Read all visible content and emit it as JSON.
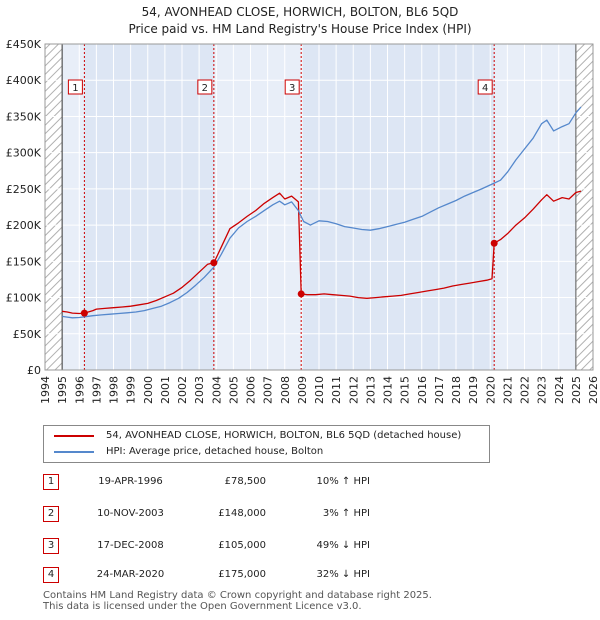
{
  "title": {
    "line1": "54, AVONHEAD CLOSE, HORWICH, BOLTON, BL6 5QD",
    "line2": "Price paid vs. HM Land Registry's House Price Index (HPI)"
  },
  "colors": {
    "property": "#cc0000",
    "hpi": "#5588cc",
    "sale_band": "#dde6f4",
    "future_hatch": "#b0b0b0",
    "grid": "#ffffff",
    "plot_bg": "#e8eef8"
  },
  "chart_data": {
    "type": "line",
    "title": "54, AVONHEAD CLOSE, HORWICH, BOLTON, BL6 5QD — Price paid vs. HM Land Registry's House Price Index (HPI)",
    "xlabel": "",
    "ylabel": "",
    "xlim": [
      1995,
      2026
    ],
    "ylim": [
      0,
      450000
    ],
    "x_ticks": [
      1994,
      1995,
      1996,
      1997,
      1998,
      1999,
      2000,
      2001,
      2002,
      2003,
      2004,
      2005,
      2006,
      2007,
      2008,
      2009,
      2010,
      2011,
      2012,
      2013,
      2014,
      2015,
      2016,
      2017,
      2018,
      2019,
      2020,
      2021,
      2022,
      2023,
      2024,
      2025,
      2026
    ],
    "y_ticks": [
      {
        "value": 0,
        "label": "£0"
      },
      {
        "value": 50000,
        "label": "£50K"
      },
      {
        "value": 100000,
        "label": "£100K"
      },
      {
        "value": 150000,
        "label": "£150K"
      },
      {
        "value": 200000,
        "label": "£200K"
      },
      {
        "value": 250000,
        "label": "£250K"
      },
      {
        "value": 300000,
        "label": "£300K"
      },
      {
        "value": 350000,
        "label": "£350K"
      },
      {
        "value": 400000,
        "label": "£400K"
      },
      {
        "value": 450000,
        "label": "£450K"
      }
    ],
    "future_from": 2025.0,
    "series": [
      {
        "name": "54, AVONHEAD CLOSE, HORWICH, BOLTON, BL6 5QD (detached house)",
        "color": "#cc0000",
        "points": [
          [
            1995.0,
            81000
          ],
          [
            1995.3,
            80000
          ],
          [
            1995.6,
            78500
          ],
          [
            1996.0,
            78000
          ],
          [
            1996.3,
            78500
          ],
          [
            1996.8,
            82000
          ],
          [
            1997.0,
            84000
          ],
          [
            1997.5,
            85000
          ],
          [
            1998.0,
            86000
          ],
          [
            1998.5,
            87000
          ],
          [
            1999.0,
            88000
          ],
          [
            1999.5,
            90000
          ],
          [
            2000.0,
            92000
          ],
          [
            2000.5,
            96000
          ],
          [
            2001.0,
            101000
          ],
          [
            2001.5,
            106000
          ],
          [
            2002.0,
            114000
          ],
          [
            2002.5,
            124000
          ],
          [
            2003.0,
            135000
          ],
          [
            2003.5,
            146000
          ],
          [
            2003.86,
            148000
          ],
          [
            2004.3,
            170000
          ],
          [
            2004.8,
            195000
          ],
          [
            2005.3,
            203000
          ],
          [
            2005.8,
            212000
          ],
          [
            2006.3,
            220000
          ],
          [
            2006.8,
            230000
          ],
          [
            2007.3,
            238000
          ],
          [
            2007.7,
            244000
          ],
          [
            2008.0,
            236000
          ],
          [
            2008.4,
            240000
          ],
          [
            2008.8,
            232000
          ],
          [
            2008.96,
            105000
          ],
          [
            2009.3,
            104000
          ],
          [
            2009.8,
            104000
          ],
          [
            2010.3,
            105000
          ],
          [
            2010.8,
            104000
          ],
          [
            2011.3,
            103000
          ],
          [
            2011.8,
            102000
          ],
          [
            2012.3,
            100000
          ],
          [
            2012.8,
            99000
          ],
          [
            2013.3,
            100000
          ],
          [
            2013.8,
            101000
          ],
          [
            2014.3,
            102000
          ],
          [
            2014.8,
            103000
          ],
          [
            2015.3,
            105000
          ],
          [
            2015.8,
            107000
          ],
          [
            2016.3,
            109000
          ],
          [
            2016.8,
            111000
          ],
          [
            2017.3,
            113000
          ],
          [
            2017.8,
            116000
          ],
          [
            2018.3,
            118000
          ],
          [
            2018.8,
            120000
          ],
          [
            2019.3,
            122000
          ],
          [
            2019.8,
            124000
          ],
          [
            2020.1,
            126000
          ],
          [
            2020.23,
            175000
          ],
          [
            2020.6,
            180000
          ],
          [
            2021.0,
            188000
          ],
          [
            2021.5,
            200000
          ],
          [
            2022.0,
            210000
          ],
          [
            2022.5,
            222000
          ],
          [
            2023.0,
            235000
          ],
          [
            2023.3,
            242000
          ],
          [
            2023.7,
            233000
          ],
          [
            2024.2,
            238000
          ],
          [
            2024.6,
            236000
          ],
          [
            2025.0,
            245000
          ],
          [
            2025.3,
            247000
          ]
        ]
      },
      {
        "name": "HPI: Average price, detached house, Bolton",
        "color": "#5588cc",
        "points": [
          [
            1995.0,
            74000
          ],
          [
            1995.3,
            73000
          ],
          [
            1995.6,
            72000
          ],
          [
            1996.0,
            72500
          ],
          [
            1996.3,
            73500
          ],
          [
            1996.8,
            75000
          ],
          [
            1997.3,
            76000
          ],
          [
            1997.8,
            77000
          ],
          [
            1998.3,
            78000
          ],
          [
            1998.8,
            79000
          ],
          [
            1999.3,
            80000
          ],
          [
            1999.8,
            82000
          ],
          [
            2000.3,
            85000
          ],
          [
            2000.8,
            88000
          ],
          [
            2001.3,
            93000
          ],
          [
            2001.8,
            99000
          ],
          [
            2002.3,
            107000
          ],
          [
            2002.8,
            117000
          ],
          [
            2003.3,
            128000
          ],
          [
            2003.86,
            142000
          ],
          [
            2004.3,
            160000
          ],
          [
            2004.8,
            182000
          ],
          [
            2005.3,
            196000
          ],
          [
            2005.8,
            205000
          ],
          [
            2006.3,
            212000
          ],
          [
            2006.8,
            220000
          ],
          [
            2007.3,
            228000
          ],
          [
            2007.7,
            233000
          ],
          [
            2008.0,
            228000
          ],
          [
            2008.4,
            232000
          ],
          [
            2008.8,
            220000
          ],
          [
            2009.1,
            205000
          ],
          [
            2009.5,
            200000
          ],
          [
            2010.0,
            206000
          ],
          [
            2010.5,
            205000
          ],
          [
            2011.0,
            202000
          ],
          [
            2011.5,
            198000
          ],
          [
            2012.0,
            196000
          ],
          [
            2012.5,
            194000
          ],
          [
            2013.0,
            193000
          ],
          [
            2013.5,
            195000
          ],
          [
            2014.0,
            198000
          ],
          [
            2014.5,
            201000
          ],
          [
            2015.0,
            204000
          ],
          [
            2015.5,
            208000
          ],
          [
            2016.0,
            212000
          ],
          [
            2016.5,
            218000
          ],
          [
            2017.0,
            224000
          ],
          [
            2017.5,
            229000
          ],
          [
            2018.0,
            234000
          ],
          [
            2018.5,
            240000
          ],
          [
            2019.0,
            245000
          ],
          [
            2019.5,
            250000
          ],
          [
            2020.23,
            258000
          ],
          [
            2020.6,
            262000
          ],
          [
            2021.0,
            273000
          ],
          [
            2021.5,
            290000
          ],
          [
            2022.0,
            305000
          ],
          [
            2022.5,
            320000
          ],
          [
            2023.0,
            340000
          ],
          [
            2023.3,
            345000
          ],
          [
            2023.7,
            330000
          ],
          [
            2024.2,
            336000
          ],
          [
            2024.6,
            340000
          ],
          [
            2025.0,
            355000
          ],
          [
            2025.3,
            363000
          ]
        ]
      }
    ],
    "sales": [
      {
        "num": "1",
        "x": 1996.3,
        "value": 78500
      },
      {
        "num": "2",
        "x": 2003.86,
        "value": 148000
      },
      {
        "num": "3",
        "x": 2008.96,
        "value": 105000
      },
      {
        "num": "4",
        "x": 2020.23,
        "value": 175000
      }
    ]
  },
  "legend": {
    "property_label": "54, AVONHEAD CLOSE, HORWICH, BOLTON, BL6 5QD (detached house)",
    "hpi_label": "HPI: Average price, detached house, Bolton"
  },
  "sales_table": [
    {
      "num": "1",
      "date": "19-APR-1996",
      "price": "£78,500",
      "hpi": "10% ↑ HPI"
    },
    {
      "num": "2",
      "date": "10-NOV-2003",
      "price": "£148,000",
      "hpi": "3% ↑ HPI"
    },
    {
      "num": "3",
      "date": "17-DEC-2008",
      "price": "£105,000",
      "hpi": "49% ↓ HPI"
    },
    {
      "num": "4",
      "date": "24-MAR-2020",
      "price": "£175,000",
      "hpi": "32% ↓ HPI"
    }
  ],
  "footer": {
    "line1": "Contains HM Land Registry data © Crown copyright and database right 2025.",
    "line2": "This data is licensed under the Open Government Licence v3.0."
  }
}
